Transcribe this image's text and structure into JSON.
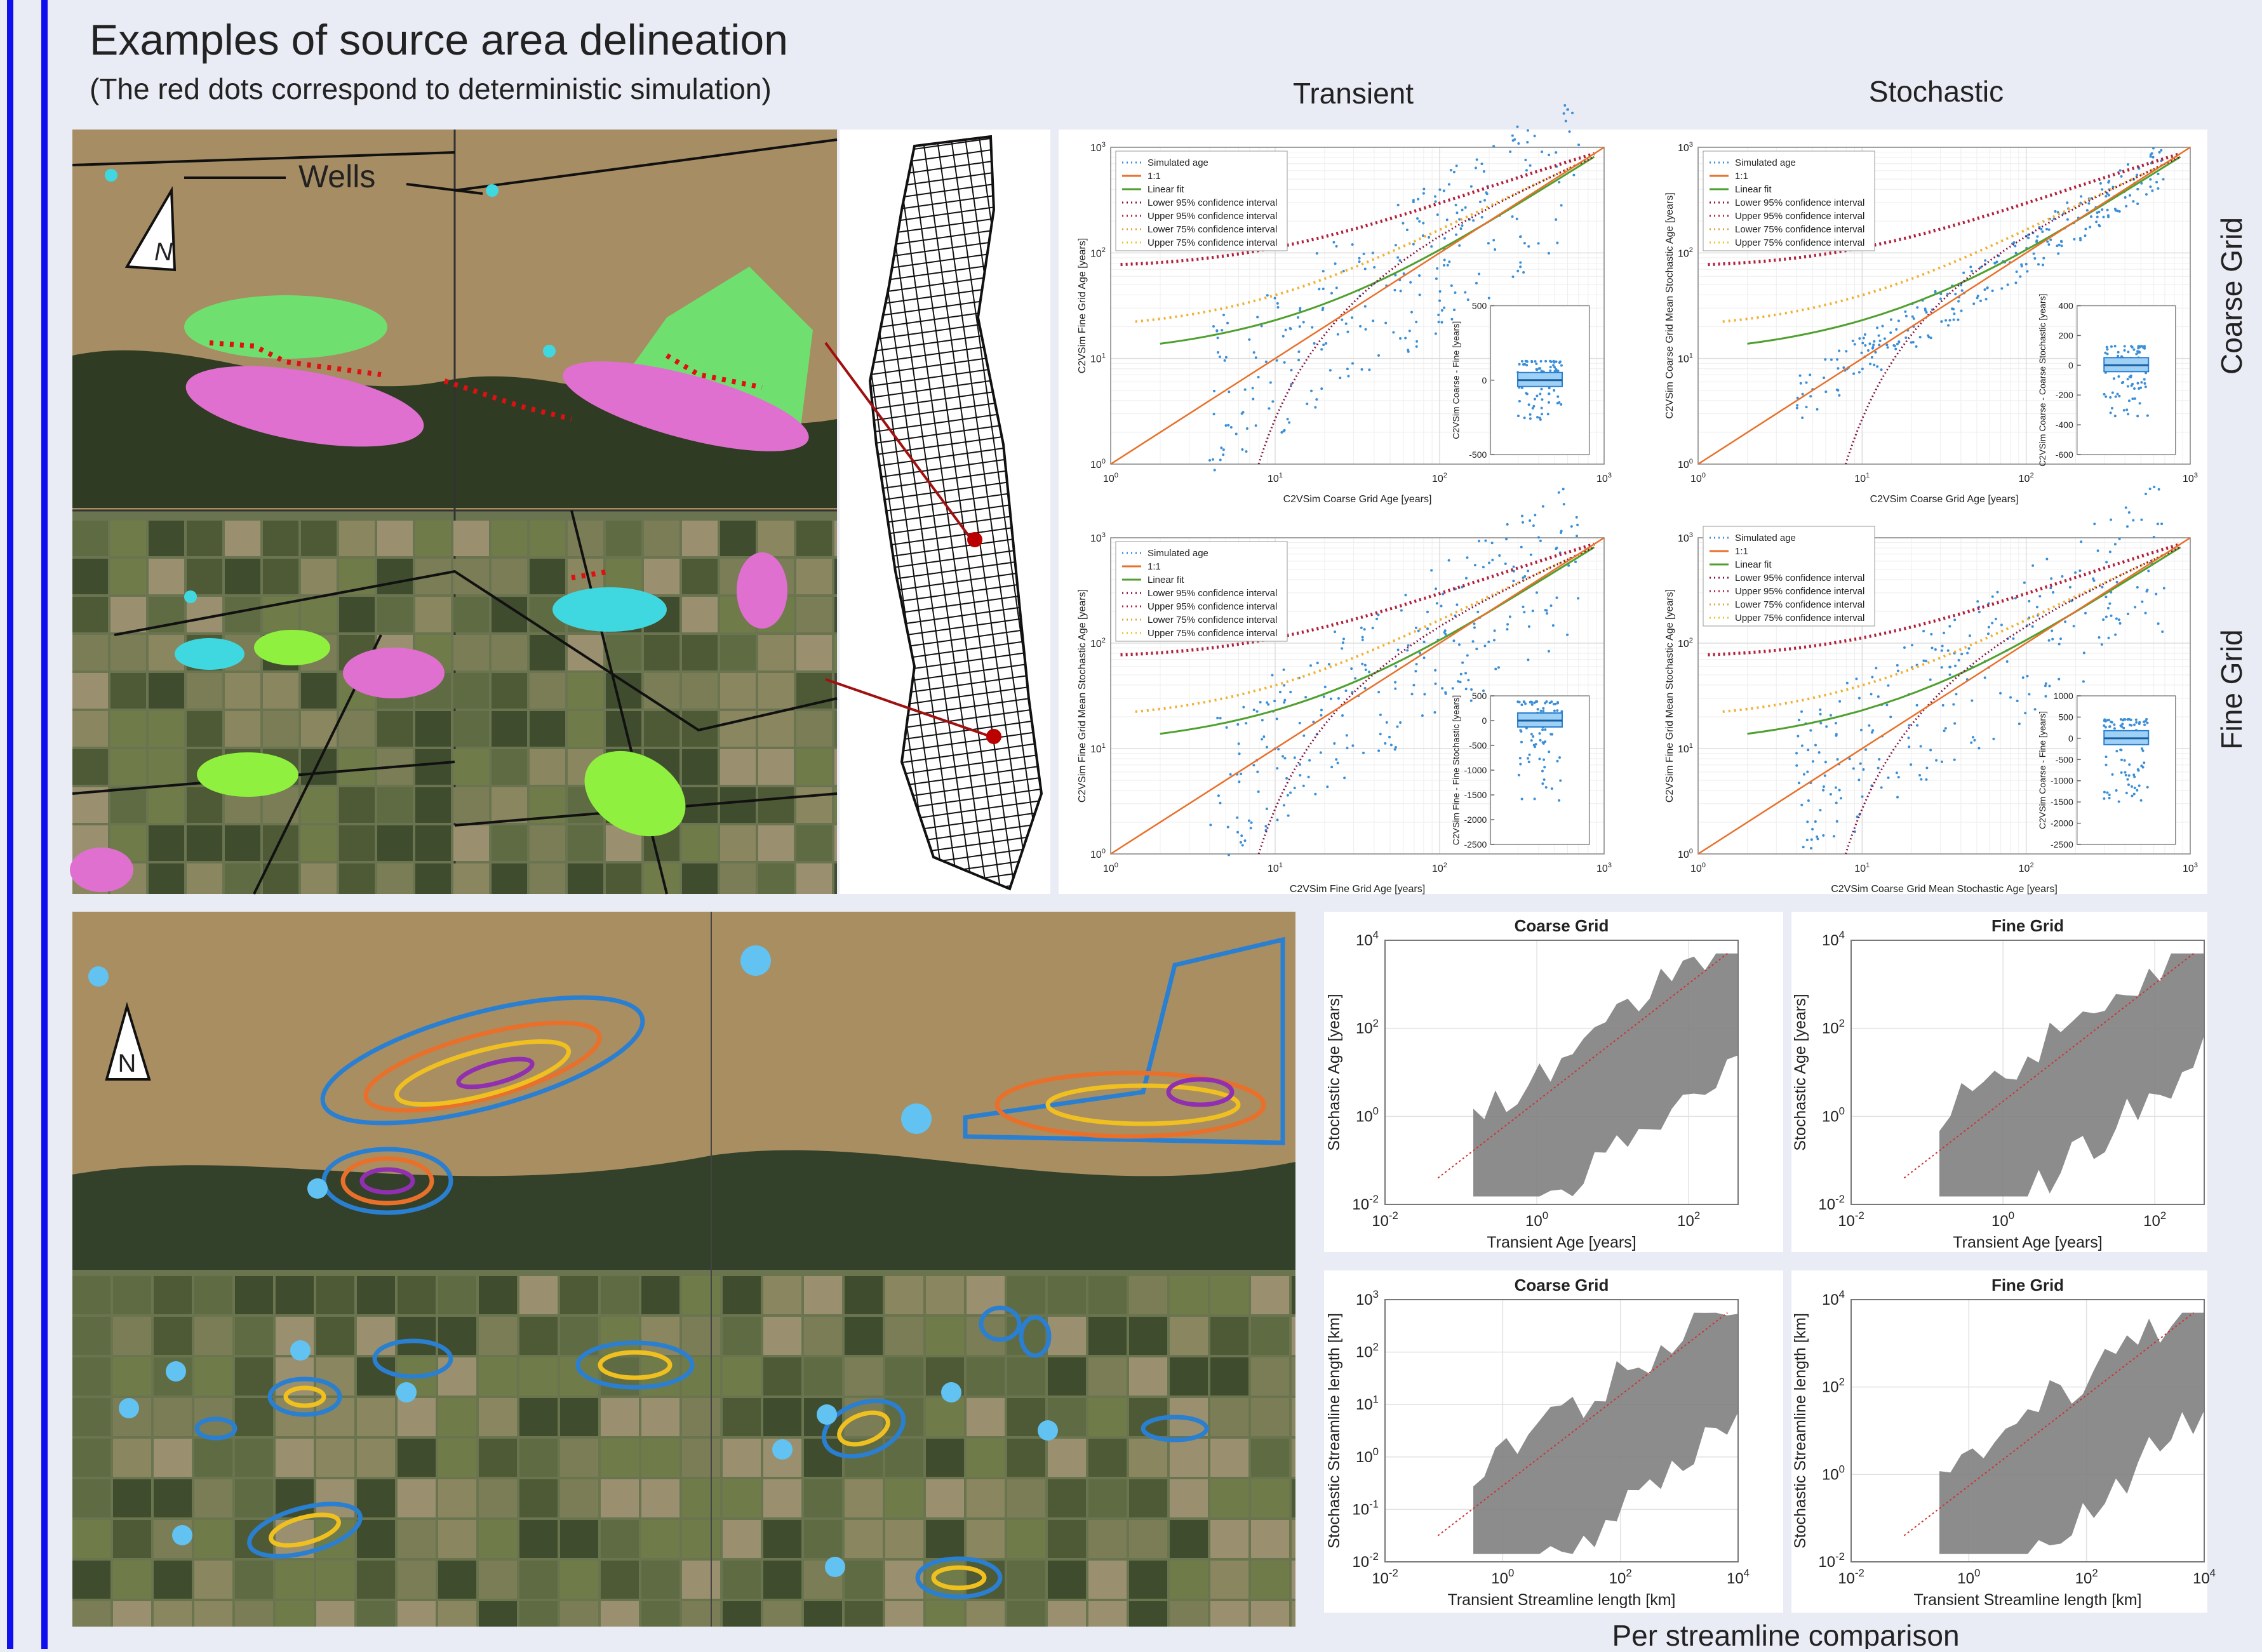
{
  "header": {
    "title": "Examples of source area delineation",
    "subtitle": "(The red dots correspond to deterministic simulation)"
  },
  "columns": [
    "Transient",
    "Stochastic"
  ],
  "rows": [
    "Coarse Grid",
    "Fine Grid"
  ],
  "map": {
    "wells_label": "Wells",
    "north": "N"
  },
  "age_plots": [
    {
      "xlabel": "C2VSim Coarse Grid Age [years]",
      "ylabel": "C2VSim Fine Grid Age [years]",
      "tick_base": "10",
      "xticks": [
        0,
        1,
        2,
        3
      ],
      "yticks": [
        0,
        1,
        2,
        3
      ],
      "legend": [
        "Simulated age",
        "1:1",
        "Linear fit",
        "Lower 95% confidence interval",
        "Upper 95% confidence interval",
        "Lower 75% confidence interval",
        "Upper 75% confidence interval"
      ],
      "inset": {
        "ylabel": "C2VSim Coarse - Fine [years]",
        "ticks": [
          500,
          0,
          -500
        ]
      }
    },
    {
      "xlabel": "C2VSim Coarse Grid Age [years]",
      "ylabel": "C2VSim Coarse Grid Mean Stochastic Age [years]",
      "tick_base": "10",
      "xticks": [
        0,
        1,
        2,
        3
      ],
      "yticks": [
        0,
        1,
        2,
        3
      ],
      "legend": [
        "Simulated age",
        "1:1",
        "Linear fit",
        "Lower 95% confidence interval",
        "Upper 95% confidence interval",
        "Lower 75% confidence interval",
        "Upper 75% confidence interval"
      ],
      "inset": {
        "ylabel": "C2VSim Coarse - Coarse Stochastic [years]",
        "ticks": [
          400,
          200,
          0,
          -200,
          -400,
          -600
        ]
      }
    },
    {
      "xlabel": "C2VSim Fine Grid Age [years]",
      "ylabel": "C2VSim Fine Grid Mean Stochastic Age [years]",
      "tick_base": "10",
      "xticks": [
        0,
        1,
        2,
        3
      ],
      "yticks": [
        0,
        1,
        2,
        3
      ],
      "legend": [
        "Simulated age",
        "1:1",
        "Linear fit",
        "Lower 95% confidence interval",
        "Upper 95% confidence interval",
        "Lower 75% confidence interval",
        "Upper 75% confidence interval"
      ],
      "inset": {
        "ylabel": "C2VSim Fine - Fine Stochastic [years]",
        "ticks": [
          500,
          0,
          -500,
          -1000,
          -1500,
          -2000,
          -2500
        ]
      }
    },
    {
      "xlabel": "C2VSim Coarse Grid Mean Stochastic Age [years]",
      "ylabel": "C2VSim Fine Grid Mean Stochastic Age [years]",
      "tick_base": "10",
      "xticks": [
        0,
        1,
        2,
        3
      ],
      "yticks": [
        0,
        1,
        2,
        3
      ],
      "legend": [
        "Simulated age",
        "1:1",
        "Linear fit",
        "Lower 95% confidence interval",
        "Upper 95% confidence interval",
        "Lower 75% confidence interval",
        "Upper 75% confidence interval"
      ],
      "inset": {
        "ylabel": "C2VSim Coarse - Fine [years]",
        "ticks": [
          1000,
          500,
          0,
          -500,
          -1000,
          -1500,
          -2000,
          -2500
        ]
      }
    }
  ],
  "streamline_plots": [
    {
      "title": "Coarse Grid",
      "xlabel": "Transient Age [years]",
      "ylabel": "Stochastic Age [years]",
      "tick_base": "10",
      "xticks": [
        -2,
        0,
        2
      ],
      "yticks": [
        -2,
        0,
        2,
        4
      ]
    },
    {
      "title": "Fine Grid",
      "xlabel": "Transient Age [years]",
      "ylabel": "Stochastic Age [years]",
      "tick_base": "10",
      "xticks": [
        -2,
        0,
        2
      ],
      "yticks": [
        -2,
        0,
        2,
        4
      ]
    },
    {
      "title": "Coarse Grid",
      "xlabel": "Transient Streamline length [km]",
      "ylabel": "Stochastic Streamline length [km]",
      "tick_base": "10",
      "xticks": [
        -2,
        0,
        2,
        4
      ],
      "yticks": [
        -2,
        -1,
        0,
        1,
        2,
        3
      ]
    },
    {
      "title": "Fine Grid",
      "xlabel": "Transient Streamline length [km]",
      "ylabel": "Stochastic Streamline length [km]",
      "tick_base": "10",
      "xticks": [
        -2,
        0,
        2,
        4
      ],
      "yticks": [
        -2,
        0,
        2,
        4
      ]
    }
  ],
  "footer": "Per streamline comparison"
}
